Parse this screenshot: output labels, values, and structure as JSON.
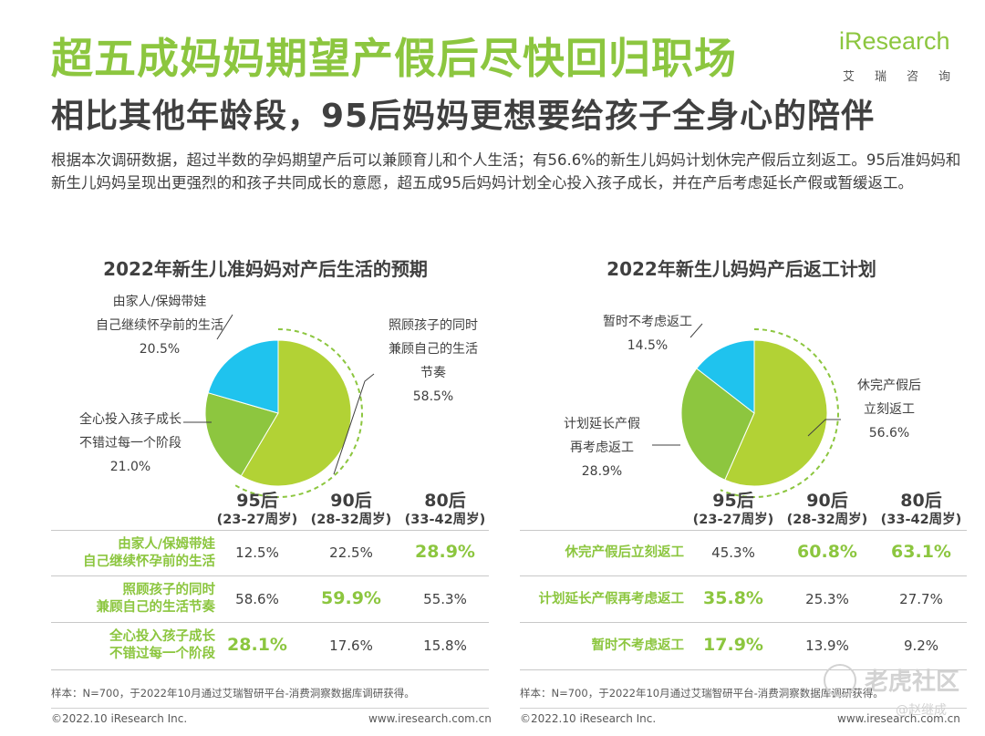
{
  "page": {
    "title": "超五成妈妈期望产假后尽快回归职场",
    "subtitle": "相比其他年龄段，95后妈妈更想要给孩子全身心的陪伴",
    "body": "根据本次调研数据，超过半数的孕妈期望产后可以兼顾育儿和个人生活；有56.6%的新生儿妈妈计划休完产假后立刻返工。95后准妈妈和新生儿妈妈呈现出更强烈的和孩子共同成长的意愿，超五成95后妈妈计划全心投入孩子成长，并在产后考虑延长产假或暂缓返工。"
  },
  "logo": {
    "name": "iResearch",
    "sub": "艾瑞咨询"
  },
  "colors": {
    "green": "#8cc63f",
    "lime": "#b2d235",
    "darkgreen": "#8dc63f",
    "cyan": "#1fc3ee",
    "dashed": "#8cc63f"
  },
  "chart_data": [
    {
      "type": "pie",
      "title": "2022年新生儿准妈妈对产后生活的预期",
      "slices": [
        {
          "label_lines": [
            "照顾孩子的同时",
            "兼顾自己的生活",
            "节奏"
          ],
          "value": 58.5,
          "value_text": "58.5%",
          "color": "#b2d235",
          "highlight": true
        },
        {
          "label_lines": [
            "全心投入孩子成长",
            "不错过每一个阶段"
          ],
          "value": 21.0,
          "value_text": "21.0%",
          "color": "#8dc63f"
        },
        {
          "label_lines": [
            "由家人/保姆带娃",
            "自己继续怀孕前的生活"
          ],
          "value": 20.5,
          "value_text": "20.5%",
          "color": "#1fc3ee"
        }
      ],
      "table": {
        "columns": [
          {
            "age": "95后",
            "range": "(23-27周岁)"
          },
          {
            "age": "90后",
            "range": "(28-32周岁)"
          },
          {
            "age": "80后",
            "range": "(33-42周岁)"
          }
        ],
        "rows": [
          {
            "label_lines": [
              "由家人/保姆带娃",
              "自己继续怀孕前的生活"
            ],
            "values": [
              "12.5%",
              "22.5%",
              "28.9%"
            ],
            "highlight_index": 2
          },
          {
            "label_lines": [
              "照顾孩子的同时",
              "兼顾自己的生活节奏"
            ],
            "values": [
              "58.6%",
              "59.9%",
              "55.3%"
            ],
            "highlight_index": 1
          },
          {
            "label_lines": [
              "全心投入孩子成长",
              "不错过每一个阶段"
            ],
            "values": [
              "28.1%",
              "17.6%",
              "15.8%"
            ],
            "highlight_index": 0
          }
        ]
      },
      "note": "样本：N=700，于2022年10月通过艾瑞智研平台-消费洞察数据库调研获得。"
    },
    {
      "type": "pie",
      "title": "2022年新生儿妈妈产后返工计划",
      "slices": [
        {
          "label_lines": [
            "休完产假后",
            "立刻返工"
          ],
          "value": 56.6,
          "value_text": "56.6%",
          "color": "#b2d235",
          "highlight": true
        },
        {
          "label_lines": [
            "计划延长产假",
            "再考虑返工"
          ],
          "value": 28.9,
          "value_text": "28.9%",
          "color": "#8dc63f"
        },
        {
          "label_lines": [
            "暂时不考虑返工"
          ],
          "value": 14.5,
          "value_text": "14.5%",
          "color": "#1fc3ee"
        }
      ],
      "table": {
        "columns": [
          {
            "age": "95后",
            "range": "(23-27周岁)"
          },
          {
            "age": "90后",
            "range": "(28-32周岁)"
          },
          {
            "age": "80后",
            "range": "(33-42周岁)"
          }
        ],
        "rows": [
          {
            "label_lines": [
              "休完产假后立刻返工"
            ],
            "values": [
              "45.3%",
              "60.8%",
              "63.1%"
            ],
            "highlight_index": 2
          },
          {
            "label_lines": [
              "计划延长产假再考虑返工"
            ],
            "values": [
              "35.8%",
              "25.3%",
              "27.7%"
            ],
            "highlight_index": 0
          },
          {
            "label_lines": [
              "暂时不考虑返工"
            ],
            "values": [
              "17.9%",
              "13.9%",
              "9.2%"
            ],
            "highlight_index": 0
          }
        ]
      },
      "note": "样本：N=700，于2022年10月通过艾瑞智研平台-消费洞察数据库调研获得。"
    }
  ],
  "extra_highlights": {
    "right_row1_col1": true
  },
  "footer": {
    "left_copyright": "©2022.10 iResearch Inc.",
    "left_url": "www.iresearch.com.cn",
    "right_copyright": "©2022.10 iResearch Inc.",
    "right_url": "www.iresearch.com.cn"
  },
  "watermark": {
    "text": "老虎社区",
    "sub": "@赵继成"
  }
}
